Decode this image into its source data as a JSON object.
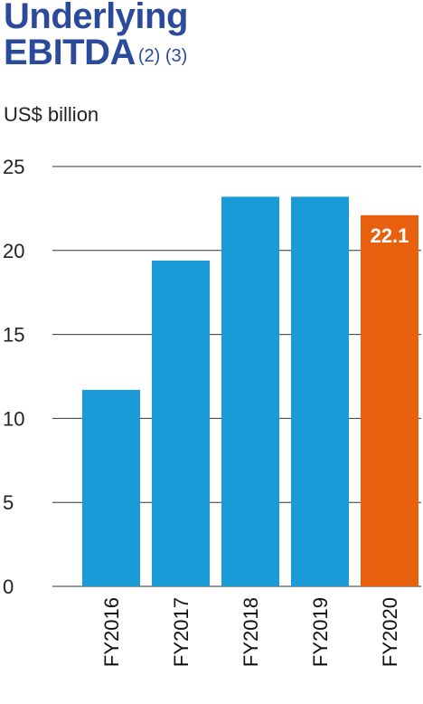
{
  "chart_data": {
    "type": "bar",
    "title_line1": "Underlying",
    "title_line2": "EBITDA",
    "title_notes": "(2) (3)",
    "ylabel": "US$ billion",
    "ylim": [
      0,
      25
    ],
    "yticks": [
      0,
      5,
      10,
      15,
      20,
      25
    ],
    "grid": true,
    "categories": [
      "FY2016",
      "FY2017",
      "FY2018",
      "FY2019",
      "FY2020"
    ],
    "values": [
      11.7,
      19.4,
      23.2,
      23.2,
      22.1
    ],
    "colors": [
      "#1a9ad6",
      "#1a9ad6",
      "#1a9ad6",
      "#1a9ad6",
      "#e8600e"
    ],
    "data_labels": [
      "",
      "",
      "",
      "",
      "22.1"
    ]
  }
}
